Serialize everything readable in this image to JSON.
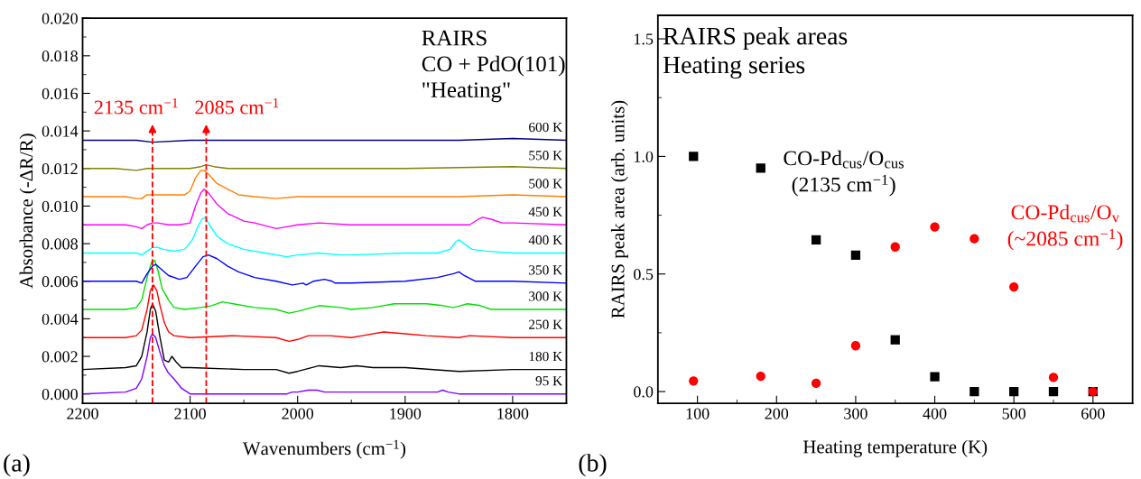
{
  "chart_data": [
    {
      "type": "line",
      "xlabel": "Wavenumbers (cm$^{−1}$)",
      "ylabel": "Absorbance (-ΔR/R)",
      "xlim": [
        2200,
        1750
      ],
      "xticks": [
        2200,
        {
          "value": 2150,
          "label": null
        },
        2100,
        {
          "value": 2050,
          "label": null
        },
        2000,
        {
          "value": 1950,
          "label": null
        },
        1900,
        {
          "value": 1850,
          "label": null
        },
        1800
      ],
      "ylim": [
        -0.0005,
        0.02
      ],
      "yticks": [
        {
          "value": 0,
          "label": "0.000"
        },
        {
          "value": 0.001,
          "label": null
        },
        {
          "value": 0.002,
          "label": "0.002"
        },
        {
          "value": 0.003,
          "label": null
        },
        {
          "value": 0.004,
          "label": "0.004"
        },
        {
          "value": 0.005,
          "label": null
        },
        {
          "value": 0.006,
          "label": "0.006"
        },
        {
          "value": 0.007,
          "label": null
        },
        {
          "value": 0.008,
          "label": "0.008"
        },
        {
          "value": 0.009,
          "label": null
        },
        {
          "value": 0.01,
          "label": "0.010"
        },
        {
          "value": 0.011,
          "label": null
        },
        {
          "value": 0.012,
          "label": "0.012"
        },
        {
          "value": 0.013,
          "label": null
        },
        {
          "value": 0.014,
          "label": "0.014"
        },
        {
          "value": 0.015,
          "label": null
        },
        {
          "value": 0.016,
          "label": "0.016"
        },
        {
          "value": 0.017,
          "label": null
        },
        {
          "value": 0.018,
          "label": "0.018"
        },
        {
          "value": 0.019,
          "label": null
        },
        {
          "value": 0.02,
          "label": "0.020"
        }
      ],
      "annotations": [
        "RAIRS\nCO + PdO(101)\n\"Heating\"",
        "(a)"
      ],
      "ref_lines": [
        {
          "axis": "x",
          "value": 2135,
          "label": "2135 cm$^{−1}$",
          "color": "#ff0000",
          "line_style": "dashed"
        },
        {
          "axis": "x",
          "value": 2085,
          "label": "2085 cm$^{−1}$",
          "color": "#ff0000",
          "line_style": "dashed"
        }
      ],
      "series": [
        {
          "name": "95 K",
          "color": "#8000ff",
          "x": [
            2200,
            2160,
            2150,
            2145,
            2140,
            2137,
            2135,
            2132,
            2128,
            2124,
            2120,
            2115,
            2108,
            2100,
            2050,
            2010,
            2005,
            2000,
            1990,
            1982,
            1975,
            1960,
            1900,
            1870,
            1865,
            1860,
            1850,
            1800,
            1750
          ],
          "values": [
            0,
            0.0001,
            0.0003,
            0.0008,
            0.002,
            0.003,
            0.0032,
            0.003,
            0.0022,
            0.0015,
            0.0011,
            0.0008,
            0.0003,
            0.0,
            0.0,
            0.0,
            0.0001,
            0.0001,
            0.0002,
            0.0002,
            0.0001,
            0.0001,
            0.0001,
            0.0001,
            0.0002,
            0.0001,
            0.0,
            0.0,
            0.0
          ]
        },
        {
          "name": "180 K",
          "color": "#000000",
          "x": [
            2200,
            2160,
            2150,
            2145,
            2140,
            2137,
            2135,
            2132,
            2128,
            2124,
            2120,
            2117,
            2113,
            2108,
            2100,
            2050,
            2020,
            2008,
            2000,
            1980,
            1960,
            1945,
            1930,
            1900,
            1850,
            1800,
            1750
          ],
          "values": [
            0.0013,
            0.0014,
            0.0015,
            0.002,
            0.0033,
            0.0045,
            0.0048,
            0.0044,
            0.003,
            0.0018,
            0.0017,
            0.002,
            0.0017,
            0.0014,
            0.0014,
            0.0013,
            0.0013,
            0.0011,
            0.0012,
            0.0015,
            0.0014,
            0.0015,
            0.0014,
            0.0014,
            0.0012,
            0.0013,
            0.0013
          ]
        },
        {
          "name": "250 K",
          "color": "#ff0000",
          "x": [
            2200,
            2160,
            2150,
            2145,
            2140,
            2137,
            2134,
            2131,
            2128,
            2124,
            2120,
            2115,
            2100,
            2060,
            2020,
            2008,
            2000,
            1990,
            1970,
            1950,
            1940,
            1920,
            1900,
            1880,
            1850,
            1840,
            1800,
            1750
          ],
          "values": [
            0.003,
            0.003,
            0.0031,
            0.0034,
            0.0045,
            0.0055,
            0.0058,
            0.0055,
            0.0047,
            0.0038,
            0.0033,
            0.0031,
            0.003,
            0.0031,
            0.003,
            0.0028,
            0.0029,
            0.0031,
            0.0031,
            0.003,
            0.0031,
            0.0033,
            0.0032,
            0.0031,
            0.003,
            0.0031,
            0.003,
            0.003
          ]
        },
        {
          "name": "300 K",
          "color": "#00e000",
          "x": [
            2200,
            2160,
            2150,
            2145,
            2140,
            2136,
            2133,
            2130,
            2126,
            2120,
            2115,
            2105,
            2090,
            2080,
            2070,
            2060,
            2040,
            2020,
            2008,
            2000,
            1980,
            1960,
            1950,
            1930,
            1910,
            1880,
            1865,
            1855,
            1842,
            1830,
            1820,
            1800,
            1750
          ],
          "values": [
            0.0045,
            0.0045,
            0.0046,
            0.005,
            0.0062,
            0.007,
            0.0071,
            0.0066,
            0.0056,
            0.005,
            0.0046,
            0.0045,
            0.0046,
            0.0047,
            0.0049,
            0.0048,
            0.0046,
            0.0045,
            0.0043,
            0.0044,
            0.0047,
            0.0046,
            0.0045,
            0.0046,
            0.0048,
            0.0048,
            0.0047,
            0.0046,
            0.0048,
            0.0047,
            0.0045,
            0.0045,
            0.0045
          ]
        },
        {
          "name": "350 K",
          "color": "#0000ff",
          "x": [
            2200,
            2160,
            2150,
            2145,
            2140,
            2135,
            2132,
            2128,
            2120,
            2110,
            2103,
            2095,
            2088,
            2083,
            2075,
            2065,
            2055,
            2040,
            2020,
            2005,
            1995,
            1992,
            1985,
            1975,
            1968,
            1965,
            1950,
            1900,
            1870,
            1855,
            1850,
            1845,
            1835,
            1800,
            1750
          ],
          "values": [
            0.006,
            0.006,
            0.006,
            0.0059,
            0.0064,
            0.0068,
            0.0069,
            0.0067,
            0.0063,
            0.0061,
            0.0062,
            0.0068,
            0.0073,
            0.0074,
            0.0072,
            0.0068,
            0.0065,
            0.0062,
            0.006,
            0.0058,
            0.0059,
            0.0058,
            0.006,
            0.0061,
            0.006,
            0.0059,
            0.0059,
            0.006,
            0.0062,
            0.0064,
            0.0065,
            0.0063,
            0.006,
            0.006,
            0.0059
          ]
        },
        {
          "name": "400 K",
          "color": "#00ffff",
          "x": [
            2200,
            2160,
            2150,
            2145,
            2140,
            2135,
            2130,
            2125,
            2115,
            2105,
            2098,
            2092,
            2089,
            2086,
            2082,
            2075,
            2065,
            2050,
            2030,
            2010,
            2000,
            1980,
            1960,
            1950,
            1900,
            1870,
            1858,
            1853,
            1850,
            1845,
            1838,
            1825,
            1800,
            1750
          ],
          "values": [
            0.0075,
            0.0075,
            0.0075,
            0.0074,
            0.0076,
            0.0078,
            0.0078,
            0.0077,
            0.0076,
            0.0077,
            0.0082,
            0.009,
            0.0093,
            0.0094,
            0.009,
            0.0084,
            0.008,
            0.0077,
            0.0075,
            0.0073,
            0.0074,
            0.0075,
            0.0074,
            0.0074,
            0.0075,
            0.0075,
            0.0077,
            0.0081,
            0.0082,
            0.008,
            0.0077,
            0.0076,
            0.0075,
            0.0075
          ]
        },
        {
          "name": "450 K",
          "color": "#ff00ff",
          "x": [
            2200,
            2160,
            2150,
            2145,
            2140,
            2135,
            2130,
            2120,
            2110,
            2100,
            2095,
            2090,
            2087,
            2083,
            2075,
            2065,
            2050,
            2040,
            2020,
            2010,
            2000,
            1980,
            1950,
            1900,
            1860,
            1840,
            1832,
            1828,
            1820,
            1810,
            1800,
            1750
          ],
          "values": [
            0.009,
            0.009,
            0.0089,
            0.0088,
            0.009,
            0.0091,
            0.0091,
            0.009,
            0.009,
            0.0091,
            0.01,
            0.0107,
            0.0109,
            0.0107,
            0.0101,
            0.0096,
            0.0092,
            0.0091,
            0.0088,
            0.0089,
            0.009,
            0.0091,
            0.009,
            0.009,
            0.009,
            0.009,
            0.0093,
            0.0094,
            0.0093,
            0.0091,
            0.0091,
            0.009
          ]
        },
        {
          "name": "500 K",
          "color": "#ff8000",
          "x": [
            2200,
            2160,
            2150,
            2145,
            2140,
            2135,
            2120,
            2105,
            2100,
            2095,
            2090,
            2087,
            2083,
            2075,
            2065,
            2055,
            2040,
            2020,
            2000,
            1950,
            1900,
            1850,
            1800,
            1750
          ],
          "values": [
            0.0105,
            0.0105,
            0.0104,
            0.0104,
            0.0106,
            0.0106,
            0.0106,
            0.0106,
            0.0108,
            0.0115,
            0.0119,
            0.0119,
            0.0117,
            0.0112,
            0.0109,
            0.0106,
            0.0105,
            0.0104,
            0.0105,
            0.0105,
            0.0105,
            0.0105,
            0.0106,
            0.0105
          ]
        },
        {
          "name": "550 K",
          "color": "#808000",
          "x": [
            2200,
            2170,
            2150,
            2140,
            2120,
            2100,
            2090,
            2085,
            2078,
            2065,
            2040,
            2000,
            1900,
            1800,
            1750
          ],
          "values": [
            0.012,
            0.012,
            0.0119,
            0.012,
            0.012,
            0.012,
            0.0121,
            0.0122,
            0.0121,
            0.012,
            0.012,
            0.012,
            0.012,
            0.0121,
            0.012
          ]
        },
        {
          "name": "600 K",
          "color": "#000080",
          "x": [
            2200,
            2150,
            2135,
            2100,
            2050,
            2000,
            1900,
            1850,
            1800,
            1750
          ],
          "values": [
            0.0135,
            0.0135,
            0.0134,
            0.0135,
            0.0135,
            0.0135,
            0.0135,
            0.0135,
            0.0136,
            0.0135
          ]
        }
      ]
    },
    {
      "type": "scatter",
      "xlabel": "Heating temperature (K)",
      "ylabel": "RAIRS peak area (arb. units)",
      "x": [
        95,
        180,
        250,
        300,
        350,
        400,
        450,
        500,
        550,
        600
      ],
      "xlim": [
        50,
        650
      ],
      "xticks": [
        100,
        {
          "value": 150,
          "label": null
        },
        200,
        {
          "value": 250,
          "label": null
        },
        300,
        {
          "value": 350,
          "label": null
        },
        400,
        {
          "value": 450,
          "label": null
        },
        500,
        {
          "value": 550,
          "label": null
        },
        600
      ],
      "ylim": [
        -0.05,
        1.6
      ],
      "yticks": [
        {
          "value": 0,
          "label": "0.0"
        },
        {
          "value": 0.25,
          "label": null
        },
        0.5,
        {
          "value": 0.75,
          "label": null
        },
        {
          "value": 1,
          "label": "1.0"
        },
        {
          "value": 1.25,
          "label": null
        },
        1.5
      ],
      "annotations": [
        "RAIRS peak areas\nHeating series",
        "(b)"
      ],
      "series": [
        {
          "name": "CO-Pd$_{cus}$/O$_{cus}$\n(2135 cm$^{−1}$)",
          "color": "#000000",
          "marker": "square",
          "values": [
            1.0,
            0.95,
            0.645,
            0.58,
            0.22,
            0.063,
            0.0,
            0.0,
            0.0,
            0.0
          ]
        },
        {
          "name": "CO-Pd$_{cus}$/O$_{v}$\n(~2085 cm$^{−1}$)",
          "color": "#ff0000",
          "marker": "circle",
          "values": [
            0.045,
            0.065,
            0.035,
            0.195,
            0.615,
            0.7,
            0.65,
            0.445,
            0.06,
            0.0
          ]
        }
      ]
    }
  ]
}
